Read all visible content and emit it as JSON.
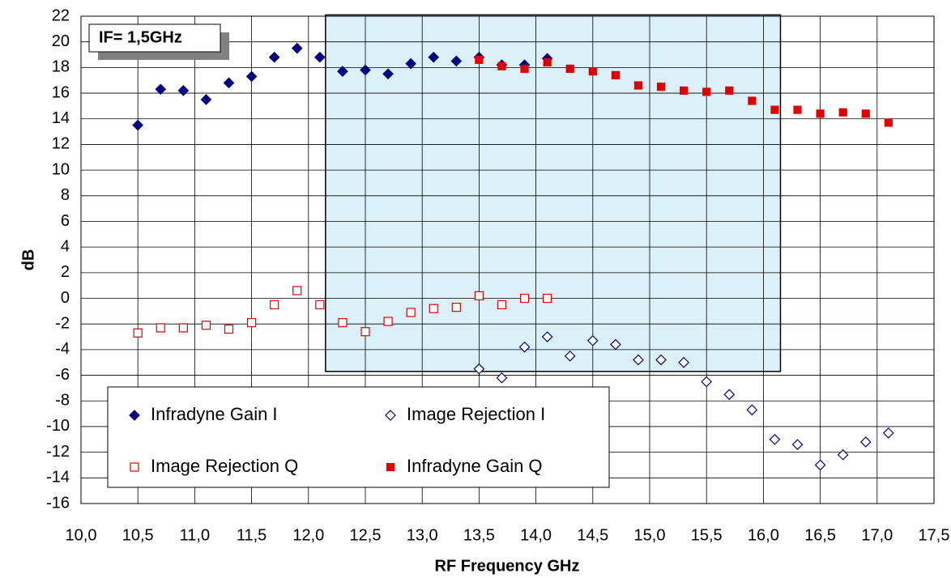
{
  "chart_data": {
    "type": "scatter",
    "annotation": "IF= 1,5GHz",
    "xlabel": "RF Frequency GHz",
    "ylabel": "dB",
    "xlim": [
      10.0,
      17.5
    ],
    "ylim": [
      -16,
      22
    ],
    "xticks": [
      {
        "value": 10.0,
        "label": "10,0"
      },
      {
        "value": 10.5,
        "label": "10,5"
      },
      {
        "value": 11.0,
        "label": "11,0"
      },
      {
        "value": 11.5,
        "label": "11,5"
      },
      {
        "value": 12.0,
        "label": "12,0"
      },
      {
        "value": 12.5,
        "label": "12,5"
      },
      {
        "value": 13.0,
        "label": "13,0"
      },
      {
        "value": 13.5,
        "label": "13,5"
      },
      {
        "value": 14.0,
        "label": "14,0"
      },
      {
        "value": 14.5,
        "label": "14,5"
      },
      {
        "value": 15.0,
        "label": "15,0"
      },
      {
        "value": 15.5,
        "label": "15,5"
      },
      {
        "value": 16.0,
        "label": "16,0"
      },
      {
        "value": 16.5,
        "label": "16,5"
      },
      {
        "value": 17.0,
        "label": "17,0"
      },
      {
        "value": 17.5,
        "label": "17,5"
      }
    ],
    "yticks": [
      -16,
      -14,
      -12,
      -10,
      -8,
      -6,
      -4,
      -2,
      0,
      2,
      4,
      6,
      8,
      10,
      12,
      14,
      16,
      18,
      20,
      22
    ],
    "grid": true,
    "shaded_region": {
      "color": "#dcf0fa",
      "xlim": [
        12.15,
        16.15
      ],
      "ylim": [
        -5.7,
        22.1
      ]
    },
    "series": [
      {
        "name": "Infradyne Gain I",
        "color": "#00007f",
        "marker": "diamond",
        "filled": true,
        "x": [
          10.5,
          10.7,
          10.9,
          11.1,
          11.3,
          11.5,
          11.7,
          11.9,
          12.1,
          12.3,
          12.5,
          12.7,
          12.9,
          13.1,
          13.3,
          13.5,
          13.7,
          13.9,
          14.1
        ],
        "values": [
          13.5,
          16.3,
          16.2,
          15.5,
          16.8,
          17.3,
          18.8,
          19.5,
          18.8,
          17.7,
          17.8,
          17.5,
          18.3,
          18.8,
          18.5,
          18.8,
          18.2,
          18.2,
          18.7
        ]
      },
      {
        "name": "Image Rejection I",
        "color": "#00007f",
        "marker": "diamond",
        "filled": false,
        "x": [
          13.5,
          13.7,
          13.9,
          14.1,
          14.3,
          14.5,
          14.7,
          14.9,
          15.1,
          15.3,
          15.5,
          15.7,
          15.9,
          16.1,
          16.3,
          16.5,
          16.7,
          16.9,
          17.1
        ],
        "values": [
          -5.5,
          -6.2,
          -3.8,
          -3.0,
          -4.5,
          -3.3,
          -3.6,
          -4.8,
          -4.8,
          -5.0,
          -6.5,
          -7.5,
          -8.7,
          -11.0,
          -11.4,
          -13.0,
          -12.2,
          -11.2,
          -10.5
        ]
      },
      {
        "name": "Image Rejection Q",
        "color": "#e00000",
        "marker": "square",
        "filled": false,
        "x": [
          10.5,
          10.7,
          10.9,
          11.1,
          11.3,
          11.5,
          11.7,
          11.9,
          12.1,
          12.3,
          12.5,
          12.7,
          12.9,
          13.1,
          13.3,
          13.5,
          13.7,
          13.9,
          14.1
        ],
        "values": [
          -2.7,
          -2.3,
          -2.3,
          -2.1,
          -2.4,
          -1.9,
          -0.5,
          0.6,
          -0.5,
          -1.9,
          -2.6,
          -1.8,
          -1.1,
          -0.8,
          -0.7,
          0.2,
          -0.5,
          0.0,
          0.0
        ]
      },
      {
        "name": "Infradyne Gain Q",
        "color": "#e00000",
        "marker": "square",
        "filled": true,
        "x": [
          13.5,
          13.7,
          13.9,
          14.1,
          14.3,
          14.5,
          14.7,
          14.9,
          15.1,
          15.3,
          15.5,
          15.7,
          15.9,
          16.1,
          16.3,
          16.5,
          16.7,
          16.9,
          17.1
        ],
        "values": [
          18.6,
          18.1,
          17.9,
          18.4,
          17.9,
          17.7,
          17.4,
          16.6,
          16.5,
          16.2,
          16.1,
          16.2,
          15.4,
          14.7,
          14.7,
          14.4,
          14.5,
          14.4,
          13.7
        ]
      }
    ]
  }
}
